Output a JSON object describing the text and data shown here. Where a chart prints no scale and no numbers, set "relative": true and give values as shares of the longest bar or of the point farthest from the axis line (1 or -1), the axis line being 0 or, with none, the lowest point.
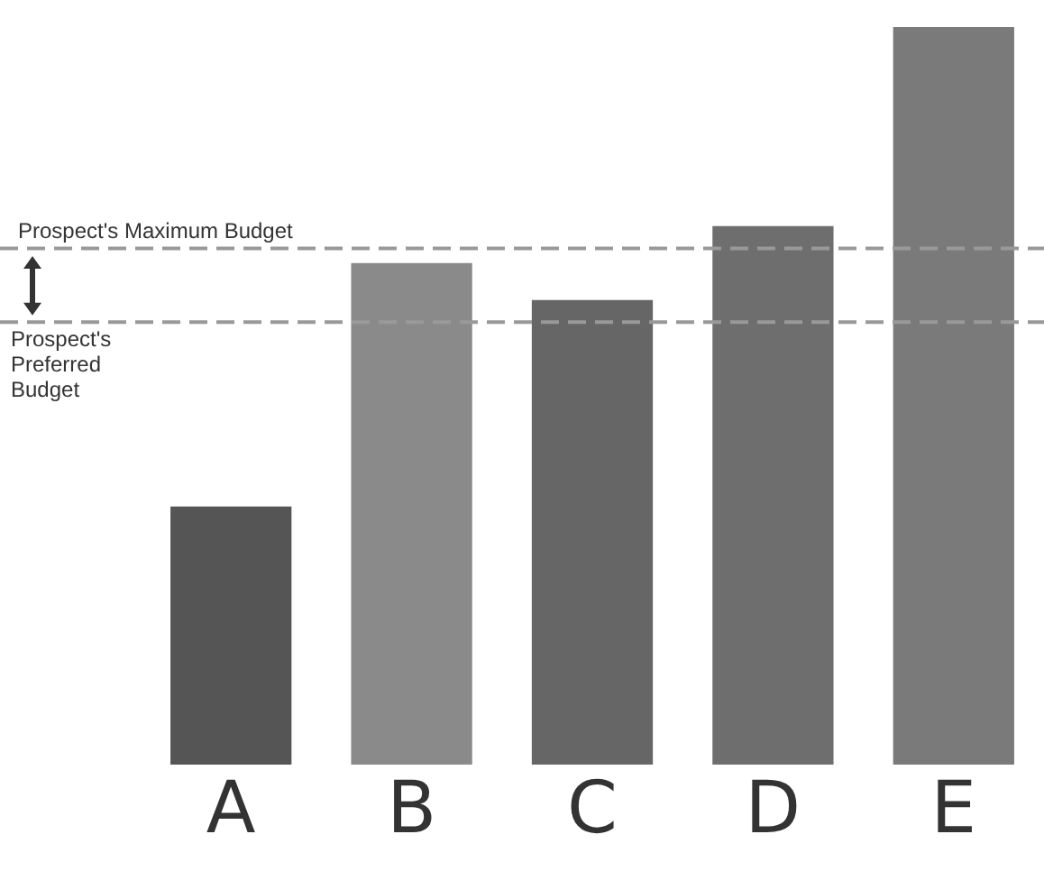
{
  "chart_data": {
    "type": "bar",
    "relative": true,
    "categories": [
      "A",
      "B",
      "C",
      "D",
      "E"
    ],
    "values": [
      0.35,
      0.68,
      0.63,
      0.73,
      1
    ],
    "colors": [
      "#555555",
      "#8a8a8a",
      "#666666",
      "#6e6e6e",
      "#7a7a7a"
    ],
    "ref_lines": [
      {
        "axis": "y",
        "value": 0.7,
        "label": "Prospect's Maximum Budget",
        "color": "#999999",
        "line_style": "dashed"
      },
      {
        "axis": "y",
        "value": 0.6,
        "label": "Prospect's Preferred Budget",
        "color": "#999999",
        "line_style": "dashed"
      }
    ],
    "grid": false,
    "legend": false
  }
}
